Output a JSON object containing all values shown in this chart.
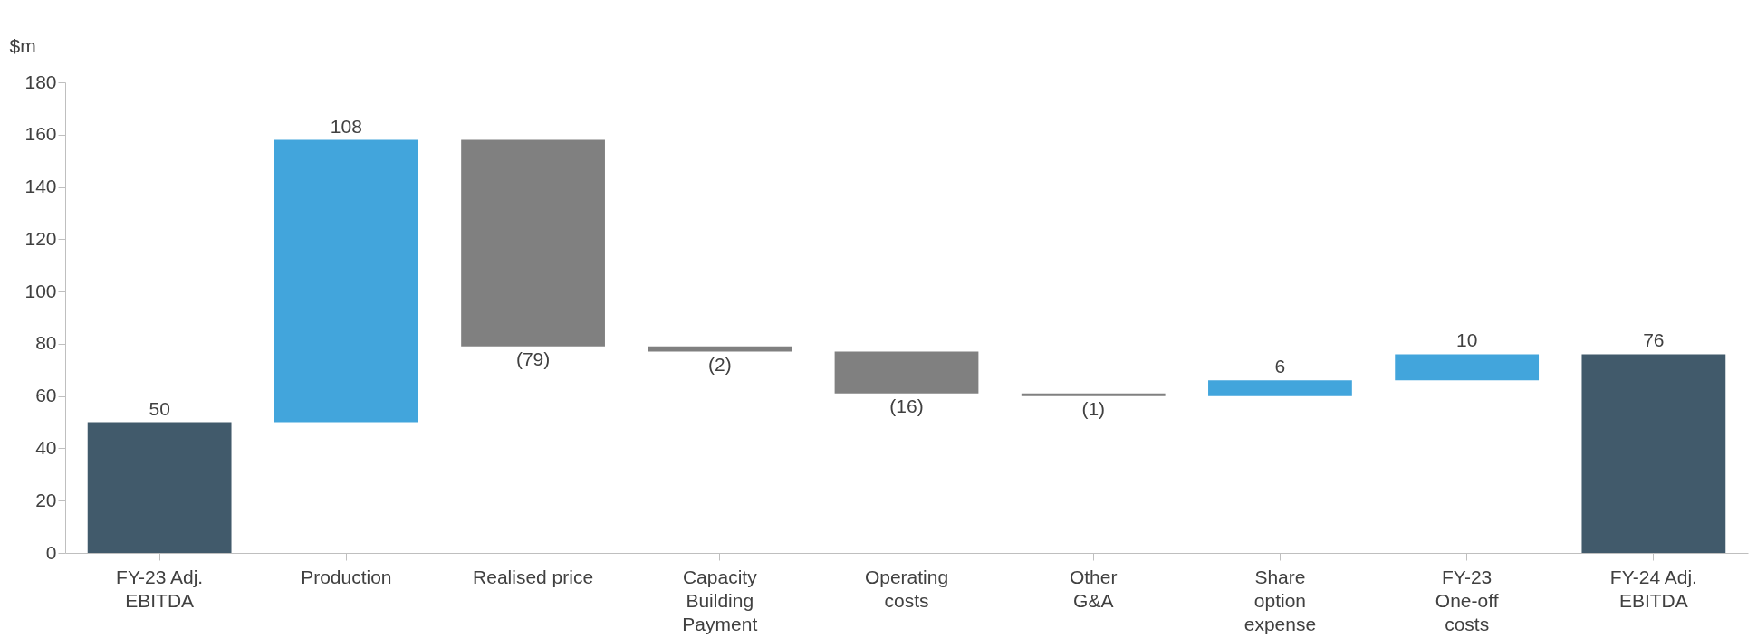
{
  "chart_data": {
    "type": "bar",
    "ylabel": "$m",
    "categories": [
      "FY-23 Adj.\nEBITDA",
      "Production",
      "Realised price",
      "Capacity\nBuilding\nPayment",
      "Operating\ncosts",
      "Other\nG&A",
      "Share\noption\nexpense",
      "FY-23\nOne-off\ncosts",
      "FY-24 Adj.\nEBITDA"
    ],
    "values": [
      50,
      108,
      -79,
      -2,
      -16,
      -1,
      6,
      10,
      76
    ],
    "base": [
      0,
      50,
      158,
      79,
      77,
      61,
      60,
      66,
      0
    ],
    "colors": [
      "#415a6b",
      "#42a5dc",
      "#808080",
      "#808080",
      "#808080",
      "#808080",
      "#42a5dc",
      "#42a5dc",
      "#415a6b"
    ],
    "value_labels": [
      "50",
      "108",
      "(79)",
      "(2)",
      "(16)",
      "(1)",
      "6",
      "10",
      "76"
    ],
    "ylim": [
      0,
      180
    ],
    "yticks": [
      0,
      20,
      40,
      60,
      80,
      100,
      120,
      140,
      160,
      180
    ],
    "grid": false
  }
}
